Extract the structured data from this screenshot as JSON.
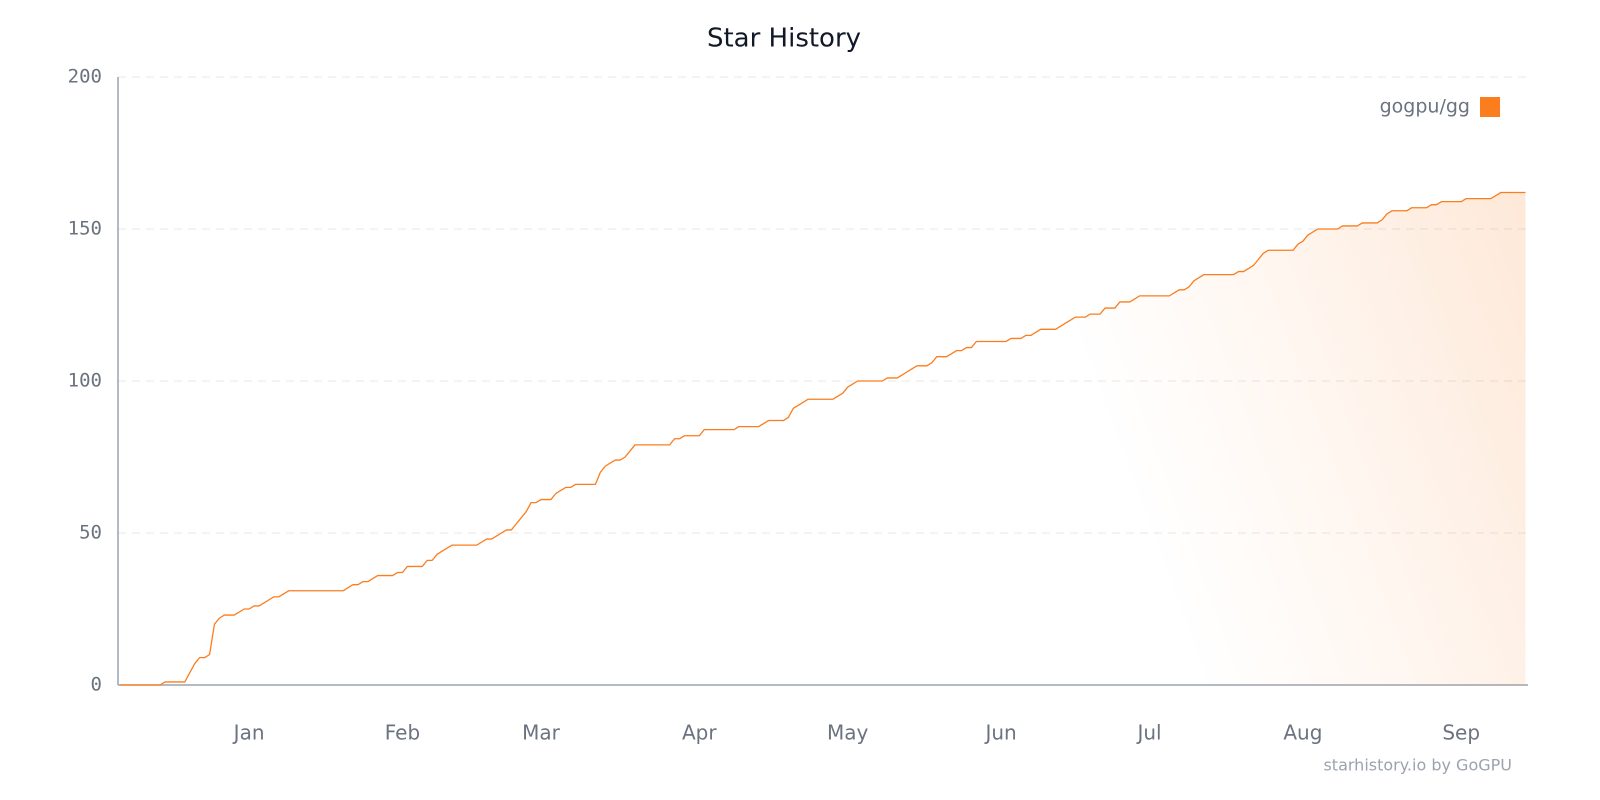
{
  "chart_data": {
    "type": "line",
    "title": "Star History",
    "watermark": "starhistory.io by GoGPU",
    "legend_position": "top-right",
    "grid": true,
    "ylim": [
      0,
      200
    ],
    "yticks": [
      0,
      50,
      100,
      150,
      200
    ],
    "categories": [
      null,
      null,
      null,
      null,
      null,
      null,
      null,
      null,
      null,
      null,
      null,
      null,
      null,
      null,
      null,
      null,
      null,
      null,
      null,
      null,
      null,
      null,
      null,
      null,
      null,
      null,
      "Jan",
      null,
      null,
      null,
      null,
      null,
      null,
      null,
      null,
      null,
      null,
      null,
      null,
      null,
      null,
      null,
      null,
      null,
      null,
      null,
      null,
      null,
      null,
      null,
      null,
      null,
      null,
      null,
      null,
      null,
      null,
      "Feb",
      null,
      null,
      null,
      null,
      null,
      null,
      null,
      null,
      null,
      null,
      null,
      null,
      null,
      null,
      null,
      null,
      null,
      null,
      null,
      null,
      null,
      null,
      null,
      null,
      null,
      null,
      null,
      "Mar",
      null,
      null,
      null,
      null,
      null,
      null,
      null,
      null,
      null,
      null,
      null,
      null,
      null,
      null,
      null,
      null,
      null,
      null,
      null,
      null,
      null,
      null,
      null,
      null,
      null,
      null,
      null,
      null,
      null,
      null,
      null,
      "Apr",
      null,
      null,
      null,
      null,
      null,
      null,
      null,
      null,
      null,
      null,
      null,
      null,
      null,
      null,
      null,
      null,
      null,
      null,
      null,
      null,
      null,
      null,
      null,
      null,
      null,
      null,
      null,
      null,
      null,
      "May",
      null,
      null,
      null,
      null,
      null,
      null,
      null,
      null,
      null,
      null,
      null,
      null,
      null,
      null,
      null,
      null,
      null,
      null,
      null,
      null,
      null,
      null,
      null,
      null,
      null,
      null,
      null,
      null,
      null,
      null,
      "Jun",
      null,
      null,
      null,
      null,
      null,
      null,
      null,
      null,
      null,
      null,
      null,
      null,
      null,
      null,
      null,
      null,
      null,
      null,
      null,
      null,
      null,
      null,
      null,
      null,
      null,
      null,
      null,
      null,
      null,
      "Jul",
      null,
      null,
      null,
      null,
      null,
      null,
      null,
      null,
      null,
      null,
      null,
      null,
      null,
      null,
      null,
      null,
      null,
      null,
      null,
      null,
      null,
      null,
      null,
      null,
      null,
      null,
      null,
      null,
      null,
      null,
      "Aug",
      null,
      null,
      null,
      null,
      null,
      null,
      null,
      null,
      null,
      null,
      null,
      null,
      null,
      null,
      null,
      null,
      null,
      null,
      null,
      null,
      null,
      null,
      null,
      null,
      null,
      null,
      null,
      null,
      null,
      null,
      null,
      "Sep",
      null,
      null,
      null,
      null,
      null,
      null,
      null,
      null,
      null,
      null,
      null,
      null,
      null
    ],
    "series": [
      {
        "name": "gogpu/gg",
        "color": "#fb7d1e",
        "values": [
          0,
          0,
          0,
          0,
          0,
          0,
          0,
          0,
          0,
          1,
          1,
          1,
          1,
          1,
          4,
          7,
          9,
          9,
          10,
          20,
          22,
          23,
          23,
          23,
          24,
          25,
          25,
          26,
          26,
          27,
          28,
          29,
          29,
          30,
          31,
          31,
          31,
          31,
          31,
          31,
          31,
          31,
          31,
          31,
          31,
          31,
          32,
          33,
          33,
          34,
          34,
          35,
          36,
          36,
          36,
          36,
          37,
          37,
          39,
          39,
          39,
          39,
          41,
          41,
          43,
          44,
          45,
          46,
          46,
          46,
          46,
          46,
          46,
          47,
          48,
          48,
          49,
          50,
          51,
          51,
          53,
          55,
          57,
          60,
          60,
          61,
          61,
          61,
          63,
          64,
          65,
          65,
          66,
          66,
          66,
          66,
          66,
          70,
          72,
          73,
          74,
          74,
          75,
          77,
          79,
          79,
          79,
          79,
          79,
          79,
          79,
          79,
          81,
          81,
          82,
          82,
          82,
          82,
          84,
          84,
          84,
          84,
          84,
          84,
          84,
          85,
          85,
          85,
          85,
          85,
          86,
          87,
          87,
          87,
          87,
          88,
          91,
          92,
          93,
          94,
          94,
          94,
          94,
          94,
          94,
          95,
          96,
          98,
          99,
          100,
          100,
          100,
          100,
          100,
          100,
          101,
          101,
          101,
          102,
          103,
          104,
          105,
          105,
          105,
          106,
          108,
          108,
          108,
          109,
          110,
          110,
          111,
          111,
          113,
          113,
          113,
          113,
          113,
          113,
          113,
          114,
          114,
          114,
          115,
          115,
          116,
          117,
          117,
          117,
          117,
          118,
          119,
          120,
          121,
          121,
          121,
          122,
          122,
          122,
          124,
          124,
          124,
          126,
          126,
          126,
          127,
          128,
          128,
          128,
          128,
          128,
          128,
          128,
          129,
          130,
          130,
          131,
          133,
          134,
          135,
          135,
          135,
          135,
          135,
          135,
          135,
          136,
          136,
          137,
          138,
          140,
          142,
          143,
          143,
          143,
          143,
          143,
          143,
          145,
          146,
          148,
          149,
          150,
          150,
          150,
          150,
          150,
          151,
          151,
          151,
          151,
          152,
          152,
          152,
          152,
          153,
          155,
          156,
          156,
          156,
          156,
          157,
          157,
          157,
          157,
          158,
          158,
          159,
          159,
          159,
          159,
          159,
          160,
          160,
          160,
          160,
          160,
          160,
          161,
          162,
          162,
          162,
          162,
          162,
          162
        ]
      }
    ]
  }
}
